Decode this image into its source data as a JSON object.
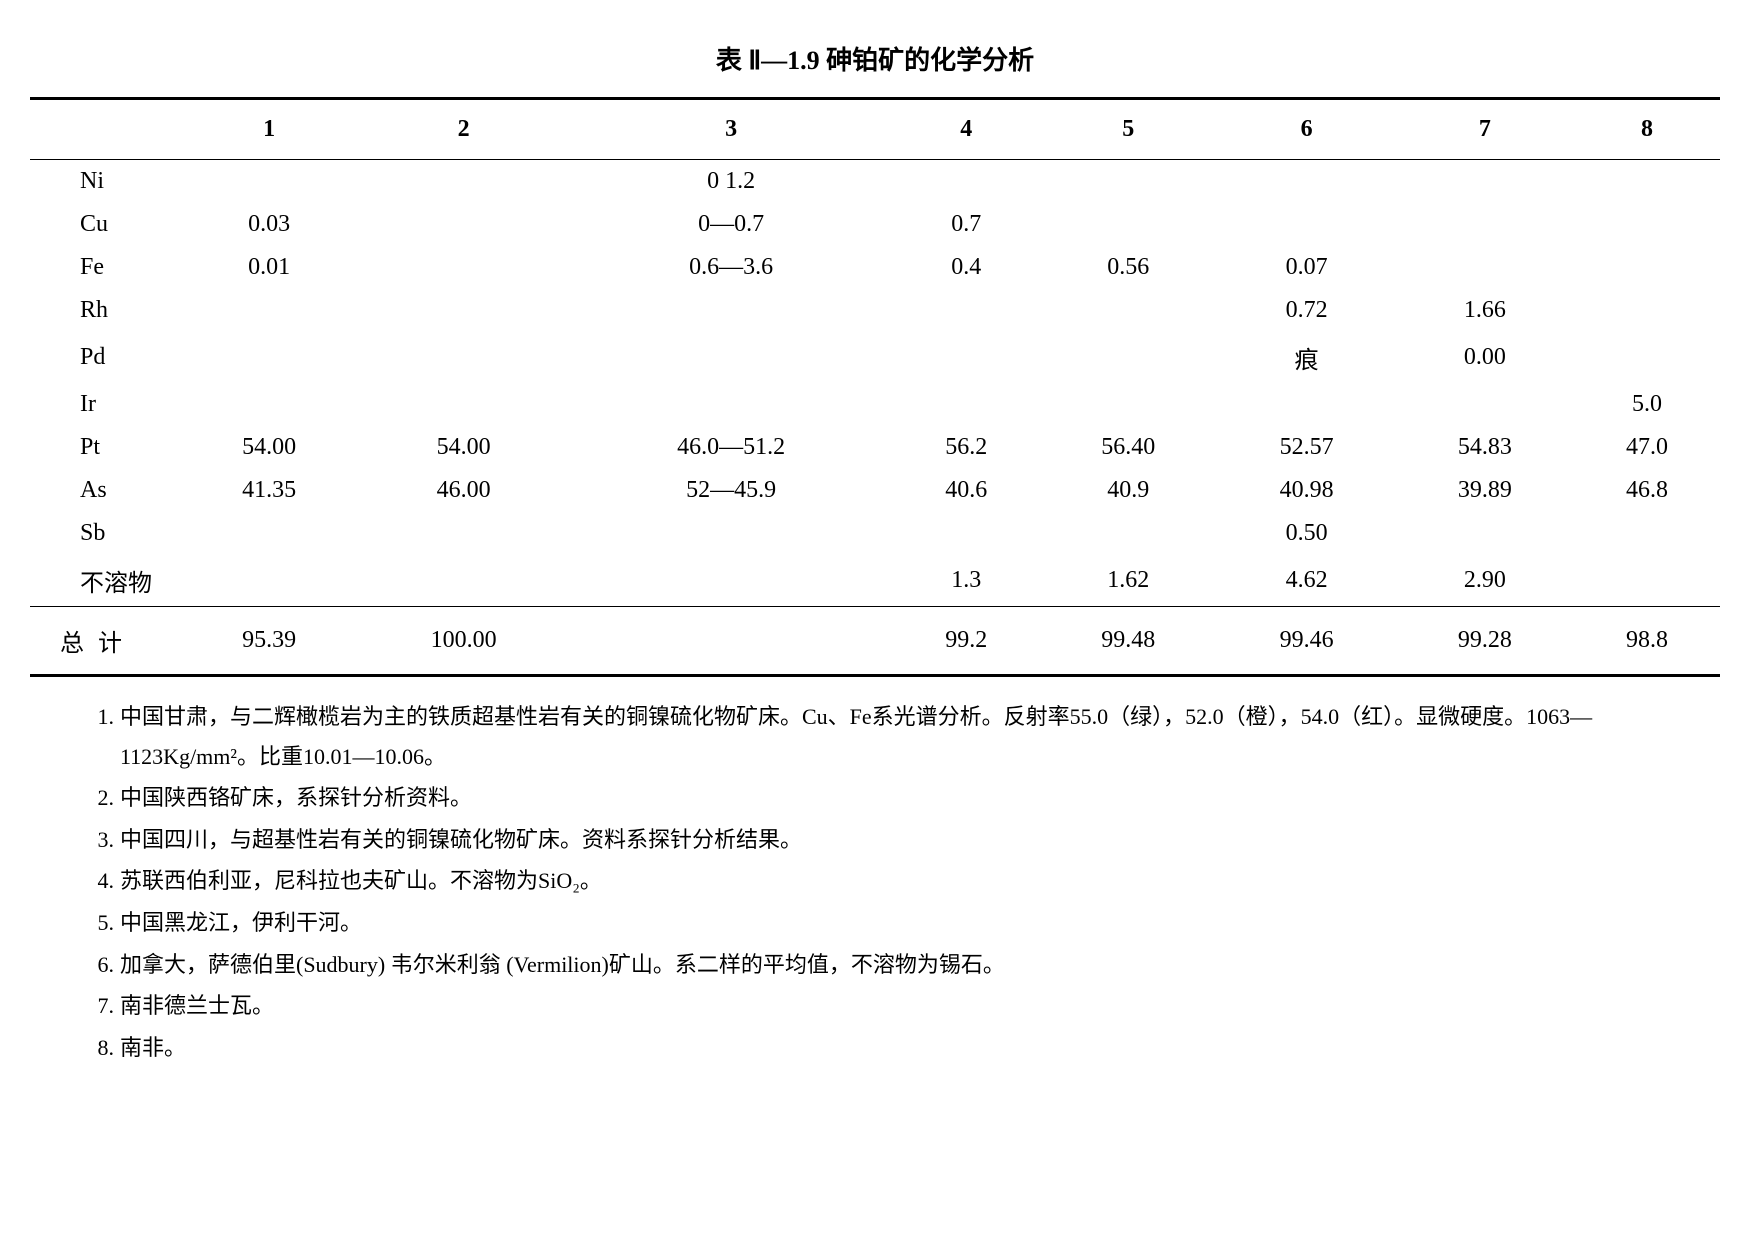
{
  "title": "表 Ⅱ—1.9  砷铂矿的化学分析",
  "columns": [
    "",
    "1",
    "2",
    "3",
    "4",
    "5",
    "6",
    "7",
    "8"
  ],
  "rows": [
    {
      "label": "Ni",
      "cells": [
        "",
        "",
        "0  1.2",
        "",
        "",
        "",
        "",
        ""
      ]
    },
    {
      "label": "Cu",
      "cells": [
        "0.03",
        "",
        "0—0.7",
        "0.7",
        "",
        "",
        "",
        ""
      ]
    },
    {
      "label": "Fe",
      "cells": [
        "0.01",
        "",
        "0.6—3.6",
        "0.4",
        "0.56",
        "0.07",
        "",
        ""
      ]
    },
    {
      "label": "Rh",
      "cells": [
        "",
        "",
        "",
        "",
        "",
        "0.72",
        "1.66",
        ""
      ]
    },
    {
      "label": "Pd",
      "cells": [
        "",
        "",
        "",
        "",
        "",
        "痕",
        "0.00",
        ""
      ]
    },
    {
      "label": "Ir",
      "cells": [
        "",
        "",
        "",
        "",
        "",
        "",
        "",
        "5.0"
      ]
    },
    {
      "label": "Pt",
      "cells": [
        "54.00",
        "54.00",
        "46.0—51.2",
        "56.2",
        "56.40",
        "52.57",
        "54.83",
        "47.0"
      ]
    },
    {
      "label": "As",
      "cells": [
        "41.35",
        "46.00",
        "52—45.9",
        "40.6",
        "40.9",
        "40.98",
        "39.89",
        "46.8"
      ]
    },
    {
      "label": "Sb",
      "cells": [
        "",
        "",
        "",
        "",
        "",
        "0.50",
        "",
        ""
      ]
    },
    {
      "label": "不溶物",
      "cells": [
        "",
        "",
        "",
        "1.3",
        "1.62",
        "4.62",
        "2.90",
        ""
      ]
    }
  ],
  "total": {
    "label": "总 计",
    "cells": [
      "95.39",
      "100.00",
      "",
      "99.2",
      "99.48",
      "99.46",
      "99.28",
      "98.8"
    ]
  },
  "notes": [
    {
      "num": "1.",
      "text": "中国甘肃，与二辉橄榄岩为主的铁质超基性岩有关的铜镍硫化物矿床。Cu、Fe系光谱分析。反射率55.0（绿），52.0（橙），54.0（红）。显微硬度。1063—1123Kg/mm²。比重10.01—10.06。"
    },
    {
      "num": "2.",
      "text": "中国陕西铬矿床，系探针分析资料。"
    },
    {
      "num": "3.",
      "text": "中国四川，与超基性岩有关的铜镍硫化物矿床。资料系探针分析结果。"
    },
    {
      "num": "4.",
      "text": "苏联西伯利亚，尼科拉也夫矿山。不溶物为SiO₂。"
    },
    {
      "num": "5.",
      "text": "中国黑龙江，伊利干河。"
    },
    {
      "num": "6.",
      "text": "加拿大，萨德伯里(Sudbury) 韦尔米利翁 (Vermilion)矿山。系二样的平均值，不溶物为锡石。"
    },
    {
      "num": "7.",
      "text": "南非德兰士瓦。"
    },
    {
      "num": "8.",
      "text": "南非。"
    }
  ],
  "styling": {
    "font_family": "SimSun",
    "title_fontsize": 26,
    "table_fontsize": 24,
    "notes_fontsize": 22,
    "text_color": "#000000",
    "background_color": "#ffffff",
    "border_heavy": 3,
    "border_light": 1.5,
    "cell_padding": 8
  }
}
